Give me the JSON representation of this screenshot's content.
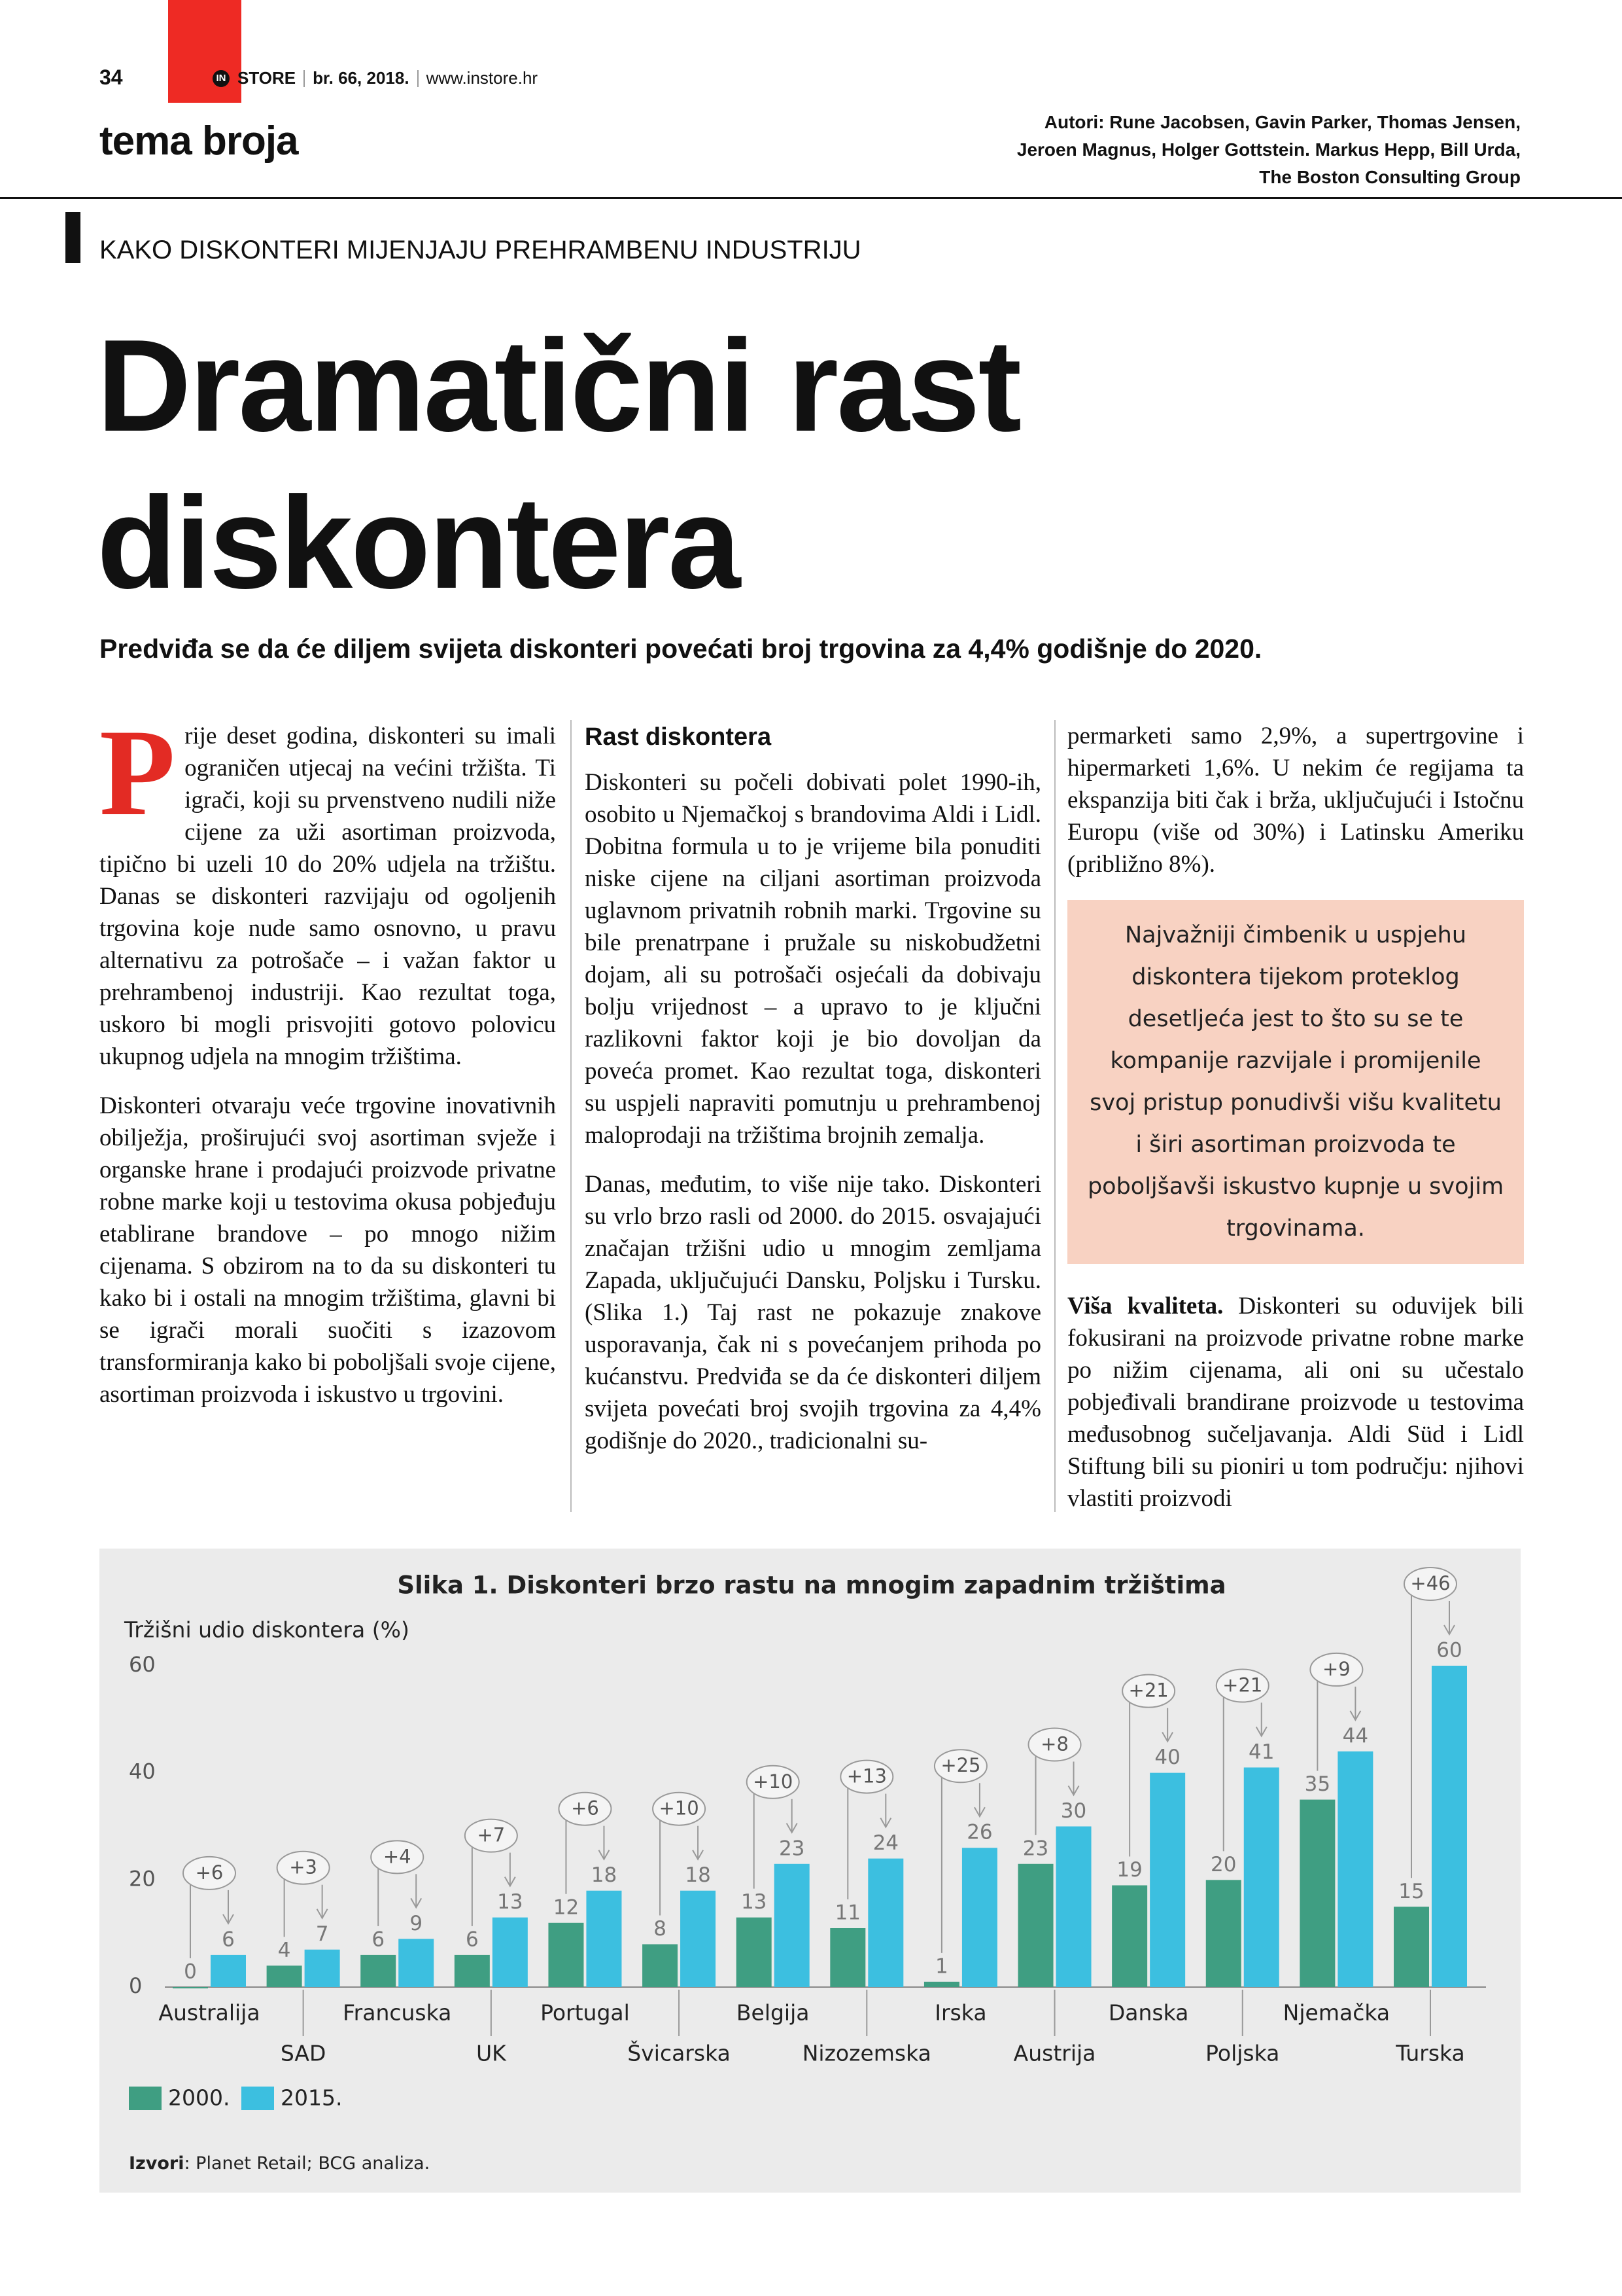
{
  "header": {
    "page_number": "34",
    "brand_mark": "IN",
    "brand": "STORE",
    "issue": "br. 66, 2018.",
    "website": "www.instore.hr",
    "section": "tema broja",
    "authors": [
      "Autori: Rune Jacobsen, Gavin Parker, Thomas Jensen,",
      "Jeroen Magnus, Holger Gottstein. Markus Hepp, Bill Urda,",
      "The Boston Consulting Group"
    ]
  },
  "article": {
    "kicker": "KAKO DISKONTERI MIJENJAJU PREHRAMBENU INDUSTRIJU",
    "headline": [
      "Dramatični rast",
      "diskontera"
    ],
    "lead": "Predviđa se da će diljem svijeta diskonteri povećati broj trgovina za 4,4% godišnje do 2020.",
    "column1": {
      "dropcap": "P",
      "paragraphs": [
        "rije deset godina, diskonteri su imali ograničen utjecaj na većini tržišta. Ti igrači, koji su prvenstveno nudili niže cijene za uži asortiman proizvoda, tipično bi uzeli 10 do 20% udjela na tržištu. Danas se diskonteri razvijaju od ogoljenih trgovina koje nude samo osnovno, u pravu alternativu za potrošače – i važan faktor u prehrambenoj industriji. Kao rezultat toga, uskoro bi mogli prisvojiti gotovo polovicu ukupnog udjela na mnogim tržištima.",
        "Diskonteri otvaraju veće trgovine inovativnih obilježja, proširujući svoj asortiman svježe i organske hrane i prodajući proizvode privatne robne marke koji u testovima okusa pobjeđuju etablirane brandove – po mnogo nižim cijenama. S obzirom na to da su diskonteri tu kako bi i ostali na mnogim tržištima, glavni bi se igrači morali suočiti s izazovom transformiranja kako bi poboljšali svoje cijene, asortiman proizvoda i iskustvo u trgovini."
      ]
    },
    "column2": {
      "heading": "Rast diskontera",
      "paragraphs": [
        "Diskonteri su počeli dobivati polet 1990-ih, osobito u Njemačkoj s brandovima Aldi i Lidl. Dobitna formula u to je vrijeme bila ponuditi niske cijene na ciljani asortiman proizvoda uglavnom privatnih robnih marki. Trgovine su bile prenatrpane i pružale su niskobudžetni dojam, ali su potrošači osjećali da dobivaju bolju vrijednost – a upravo to je ključni razlikovni faktor koji je bio dovoljan da poveća promet. Kao rezultat toga, diskonteri su uspjeli napraviti pomutnju u prehrambenoj maloprodaji na tržištima brojnih zemalja.",
        "Danas, međutim, to više nije tako. Diskonteri su vrlo brzo rasli od 2000. do 2015. osvajajući značajan tržišni udio u mnogim zemljama Zapada, uključujući Dansku, Poljsku i Tursku. (Slika 1.) Taj rast ne pokazuje znakove usporavanja, čak ni s povećanjem prihoda po kućanstvu. Predviđa se da će diskonteri diljem svijeta povećati broj svojih trgovina za 4,4% godišnje do 2020., tradicionalni su-"
      ]
    },
    "column3": {
      "paragraph": "permarketi samo 2,9%, a supertrgovine i hipermarketi 1,6%. U nekim će regijama ta ekspanzija biti čak i brža, uključujući i Istočnu Europu (više od 30%) i Latinsku Ameriku (približno 8%).",
      "quote": "Najvažniji čimbenik u uspjehu diskontera tijekom proteklog desetljeća jest to što su se te kompanije razvijale i promijenile svoj pristup ponudivši višu kvalitetu i širi asortiman proizvoda te poboljšavši iskustvo kupnje u svojim trgovinama.",
      "subhead": "Viša kvaliteta.",
      "subhead_text": "Diskonteri su oduvijek bili fokusirani na proizvode privatne robne marke po nižim cijenama, ali oni su učestalo pobjeđivali brandirane proizvode u testovima međusobnog sučeljavanja. Aldi Süd i Lidl Stiftung bili su pioniri u tom području: njihovi vlastiti proizvodi"
    }
  },
  "chart_data": {
    "type": "bar",
    "title": "Slika 1. Diskonteri brzo rastu na mnogim zapadnim tržištima",
    "y_label": "Tržišni udio diskontera (%)",
    "categories": [
      "Australija",
      "SAD",
      "Francuska",
      "UK",
      "Portugal",
      "Švicarska",
      "Belgija",
      "Nizozemska",
      "Irska",
      "Austrija",
      "Danska",
      "Poljska",
      "Njemačka",
      "Turska"
    ],
    "series": [
      {
        "name": "2000.",
        "color": "#3f9e82",
        "values": [
          0,
          4,
          6,
          6,
          12,
          8,
          13,
          11,
          1,
          23,
          19,
          20,
          35,
          15
        ]
      },
      {
        "name": "2015.",
        "color": "#3cbfe0",
        "values": [
          6,
          7,
          9,
          13,
          18,
          18,
          23,
          24,
          26,
          30,
          40,
          41,
          44,
          60
        ]
      }
    ],
    "changes": [
      "+6",
      "+3",
      "+4",
      "+7",
      "+6",
      "+10",
      "+10",
      "+13",
      "+25",
      "+8",
      "+21",
      "+21",
      "+9",
      "+46"
    ],
    "ylim": [
      0,
      60
    ],
    "yticks": [
      0,
      20,
      40,
      60
    ],
    "grid": false,
    "source": {
      "label": "Izvori",
      "text": ": Planet Retail; BCG analiza."
    }
  }
}
